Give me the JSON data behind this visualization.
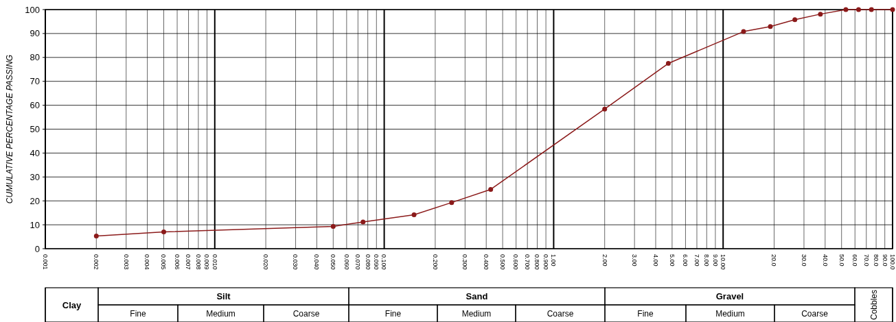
{
  "chart_data": [
    {
      "type": "line",
      "ylabel": "CUMULATIVE PERCENTAGE PASSING",
      "x": [
        0.002,
        0.005,
        0.05,
        0.075,
        0.15,
        0.25,
        0.425,
        2,
        4.75,
        13.2,
        19,
        26.5,
        37.5,
        53,
        63,
        75,
        100
      ],
      "series": [
        {
          "color": "#8b1a1a",
          "values": [
            5.3,
            7,
            9.3,
            11.2,
            14.2,
            19.3,
            24.8,
            58.4,
            77.5,
            90.8,
            92.9,
            95.8,
            98.1,
            100,
            100,
            100,
            100
          ]
        }
      ],
      "log": "x",
      "xlim": [
        0.001,
        100
      ],
      "ylim": [
        0,
        100
      ],
      "yticks": [
        0,
        10,
        20,
        30,
        40,
        50,
        60,
        70,
        80,
        90,
        100
      ],
      "xticks": [
        {
          "value": 0.001,
          "label": "0.001"
        },
        {
          "value": 0.002,
          "label": "0.002"
        },
        {
          "value": 0.003,
          "label": "0.003"
        },
        {
          "value": 0.004,
          "label": "0.004"
        },
        {
          "value": 0.005,
          "label": "0.005"
        },
        {
          "value": 0.007,
          "label": "0.007"
        },
        {
          "value": 0.006,
          "label": "0.006"
        },
        {
          "value": 0.008,
          "label": "0.008"
        },
        {
          "value": 0.009,
          "label": "0.009"
        },
        {
          "value": 0.01,
          "label": "0.010"
        },
        {
          "value": 0.02,
          "label": "0.020"
        },
        {
          "value": 0.03,
          "label": "0.030"
        },
        {
          "value": 0.04,
          "label": "0.040"
        },
        {
          "value": 0.05,
          "label": "0.050"
        },
        {
          "value": 0.06,
          "label": "0.060"
        },
        {
          "value": 0.07,
          "label": "0.070"
        },
        {
          "value": 0.09,
          "label": "0.090"
        },
        {
          "value": 0.08,
          "label": "0.080"
        },
        {
          "value": 0.1,
          "label": "0.100"
        },
        {
          "value": 0.2,
          "label": "0.200"
        },
        {
          "value": 0.3,
          "label": "0.300"
        },
        {
          "value": 0.4,
          "label": "0.400"
        },
        {
          "value": 0.5,
          "label": "0.500"
        },
        {
          "value": 0.6,
          "label": "0.600"
        },
        {
          "value": 0.7,
          "label": "0.700"
        },
        {
          "value": 0.8,
          "label": "0.800"
        },
        {
          "value": 0.9,
          "label": "0.900"
        },
        {
          "value": 1,
          "label": "1.00"
        },
        {
          "value": 2,
          "label": "2.00"
        },
        {
          "value": 3,
          "label": "3.00"
        },
        {
          "value": 4,
          "label": "4.00"
        },
        {
          "value": 5,
          "label": "5.00"
        },
        {
          "value": 6,
          "label": "6.00"
        },
        {
          "value": 7,
          "label": "7.00"
        },
        {
          "value": 8,
          "label": "8.00"
        },
        {
          "value": 9,
          "label": "9.00"
        },
        {
          "value": 10,
          "label": "10.00"
        },
        {
          "value": 20,
          "label": "20.0"
        },
        {
          "value": 30,
          "label": "30.0"
        },
        {
          "value": 40,
          "label": "40.0"
        },
        {
          "value": 50,
          "label": "50.0"
        },
        {
          "value": 60,
          "label": "60.0"
        },
        {
          "value": 70,
          "label": "70.0"
        },
        {
          "value": 80,
          "label": "80.0"
        },
        {
          "value": 90,
          "label": "90.0"
        },
        {
          "value": 100,
          "label": "100.0"
        }
      ],
      "grid": true,
      "marker": "circle",
      "line_style": "solid"
    },
    {
      "type": "other",
      "annotations": [
        "Clay",
        "Silt",
        "Fine",
        "Medium",
        "Coarse",
        "Sand",
        "Fine",
        "Medium",
        "Coarse",
        "Gravel",
        "Fine",
        "Medium",
        "Coarse",
        "Cobbles"
      ]
    }
  ]
}
